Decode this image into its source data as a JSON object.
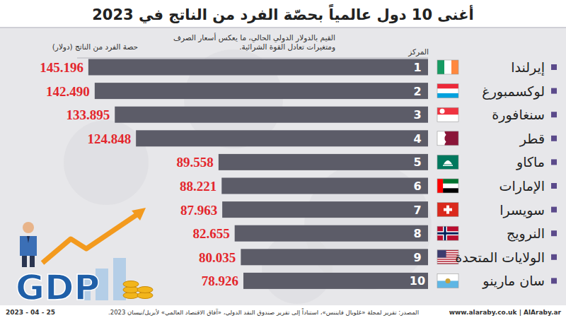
{
  "chart_data": {
    "type": "bar",
    "orientation": "horizontal",
    "title": "أغنى 10 دول عالمياً بحصّة الفرد من الناتج في 2023",
    "xlabel": "حصة الفرد من الناتج (دولار)",
    "note": "القيم بالدولار الدولي الحالي، ما يعكس أسعار الصرف ومتغيرات تعادل القوة الشرائية.",
    "rank_header": "المركز",
    "categories": [
      "إيرلندا",
      "لوكسمبورغ",
      "سنغافورة",
      "قطر",
      "ماكاو",
      "الإمارات",
      "سويسرا",
      "النرويج",
      "الولايات المتحدة",
      "سان مارينو"
    ],
    "ranks": [
      1,
      2,
      3,
      4,
      5,
      6,
      7,
      8,
      9,
      10
    ],
    "values": [
      145196,
      142490,
      133895,
      124848,
      89558,
      88221,
      87963,
      82655,
      80035,
      78926
    ],
    "value_labels": [
      "145.196",
      "142.490",
      "133.895",
      "124.848",
      "89.558",
      "88.221",
      "87.963",
      "82.655",
      "80.035",
      "78.926"
    ],
    "color": "#5c5c68",
    "data_labels": true,
    "tick_labels": false,
    "grid": false,
    "xlim": [
      0,
      150000
    ]
  },
  "source": "المصدر: تقرير لمجلة «غلوبال فايننس»، استناداً إلى تقرير صندوق النقد الدولي، «آفاق الاقتصاد العالمي» لأبريل/نيسان 2023.",
  "date": "2023 - 04 - 25",
  "website": "www.alaraby.co.uk | AlAraby.ar",
  "illustration_text": "GDP"
}
